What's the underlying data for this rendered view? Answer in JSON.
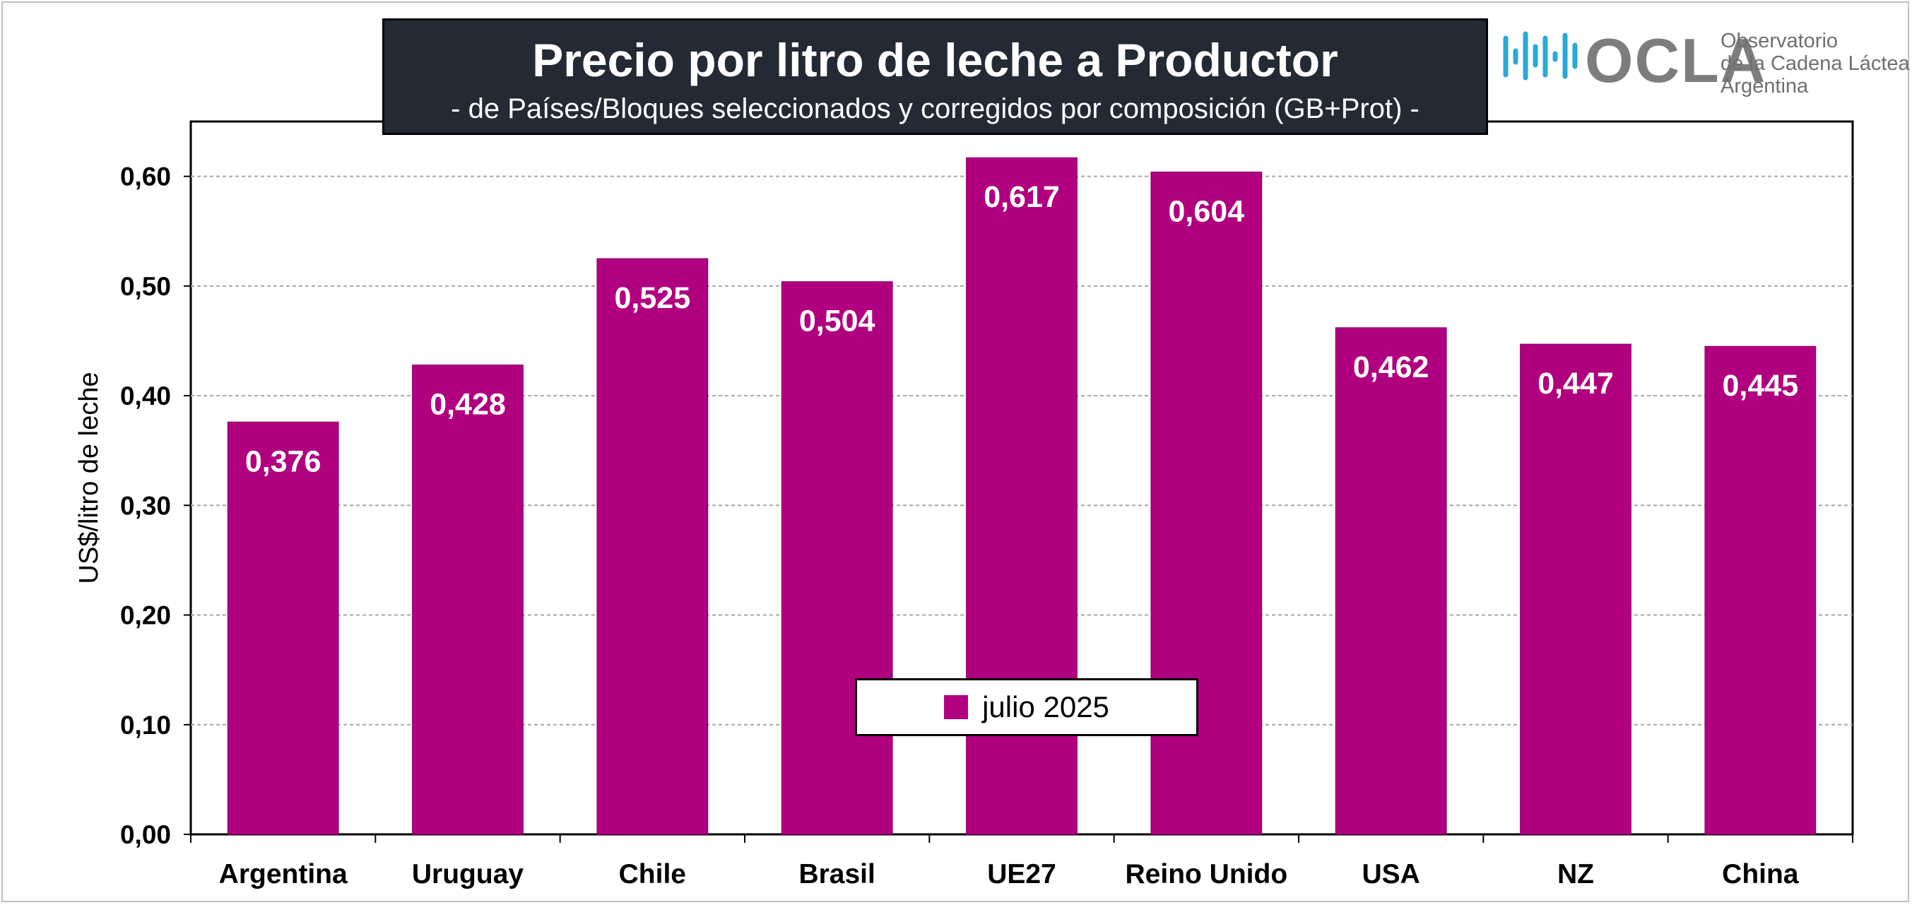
{
  "header": {
    "title": "Precio por litro de leche a Productor",
    "subtitle": "-  de Países/Bloques seleccionados y corregidos por composición (GB+Prot) -"
  },
  "logo": {
    "wordmark": "OCLA",
    "line1": "Observatorio",
    "line2": "de la Cadena Láctea",
    "line3": "Argentina",
    "color": "#7d7d7d",
    "accent": "#29a9d6"
  },
  "chart_data": {
    "type": "bar",
    "title": "Precio por litro de leche a Productor",
    "subtitle": "-  de Países/Bloques seleccionados y corregidos por composición (GB+Prot) -",
    "xlabel": "",
    "ylabel": "US$/litro de leche",
    "categories": [
      "Argentina",
      "Uruguay",
      "Chile",
      "Brasil",
      "UE27",
      "Reino Unido",
      "USA",
      "NZ",
      "China"
    ],
    "series": [
      {
        "name": "julio 2025",
        "values": [
          0.376,
          0.428,
          0.525,
          0.504,
          0.617,
          0.604,
          0.462,
          0.447,
          0.445
        ],
        "labels": [
          "0,376",
          "0,428",
          "0,525",
          "0,504",
          "0,617",
          "0,604",
          "0,462",
          "0,447",
          "0,445"
        ],
        "color": "#b0007f"
      }
    ],
    "ylim": [
      0,
      0.65
    ],
    "yticks": [
      0,
      0.1,
      0.2,
      0.3,
      0.4,
      0.5,
      0.6
    ],
    "ytick_labels": [
      "0,00",
      "0,10",
      "0,20",
      "0,30",
      "0,40",
      "0,50",
      "0,60"
    ],
    "grid": true,
    "legend_position": "bottom-center"
  }
}
